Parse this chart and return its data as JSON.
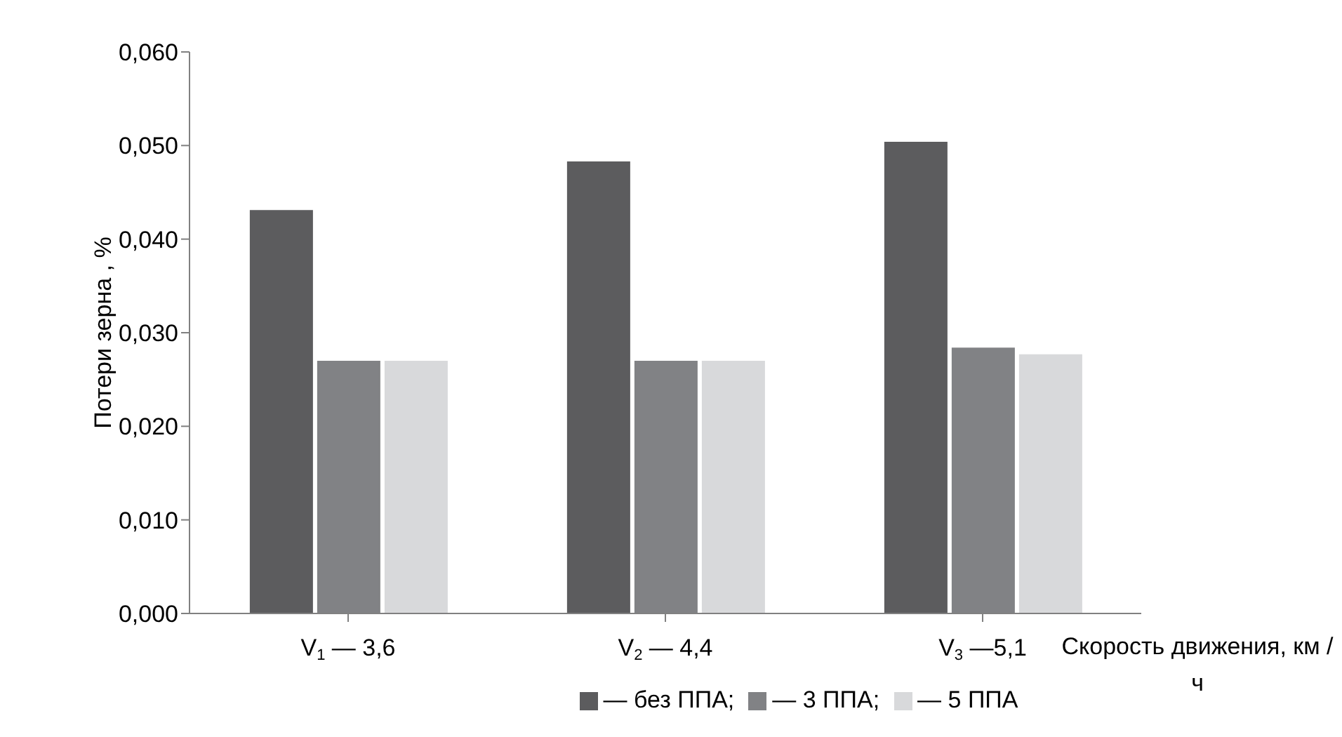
{
  "chart_data": {
    "type": "bar",
    "ylabel": "Потери зерна , %",
    "xlabel": "Скорость движения, км / ч",
    "categories": [
      "V$_{1}$ — 3,6",
      "V$_{2}$ — 4,4",
      "V$_{3}$ —5,1"
    ],
    "series": [
      {
        "name": "— без ППА;",
        "color": "#5c5c5e",
        "values": [
          0.0431,
          0.0483,
          0.0504
        ]
      },
      {
        "name": "— 3 ППА;",
        "color": "#818285",
        "values": [
          0.027,
          0.027,
          0.0284
        ]
      },
      {
        "name": "— 5 ППА",
        "color": "#d8d9db",
        "values": [
          0.027,
          0.027,
          0.0277
        ]
      }
    ],
    "ylim": [
      0,
      0.06
    ],
    "yticks": [
      {
        "value": 0,
        "label": "0,000"
      },
      {
        "value": 0.01,
        "label": "0,010"
      },
      {
        "value": 0.02,
        "label": "0,020"
      },
      {
        "value": 0.03,
        "label": "0,030"
      },
      {
        "value": 0.04,
        "label": "0,040"
      },
      {
        "value": 0.05,
        "label": "0,050"
      },
      {
        "value": 0.06,
        "label": "0,060"
      }
    ],
    "grid": false,
    "legend": "bottom"
  }
}
